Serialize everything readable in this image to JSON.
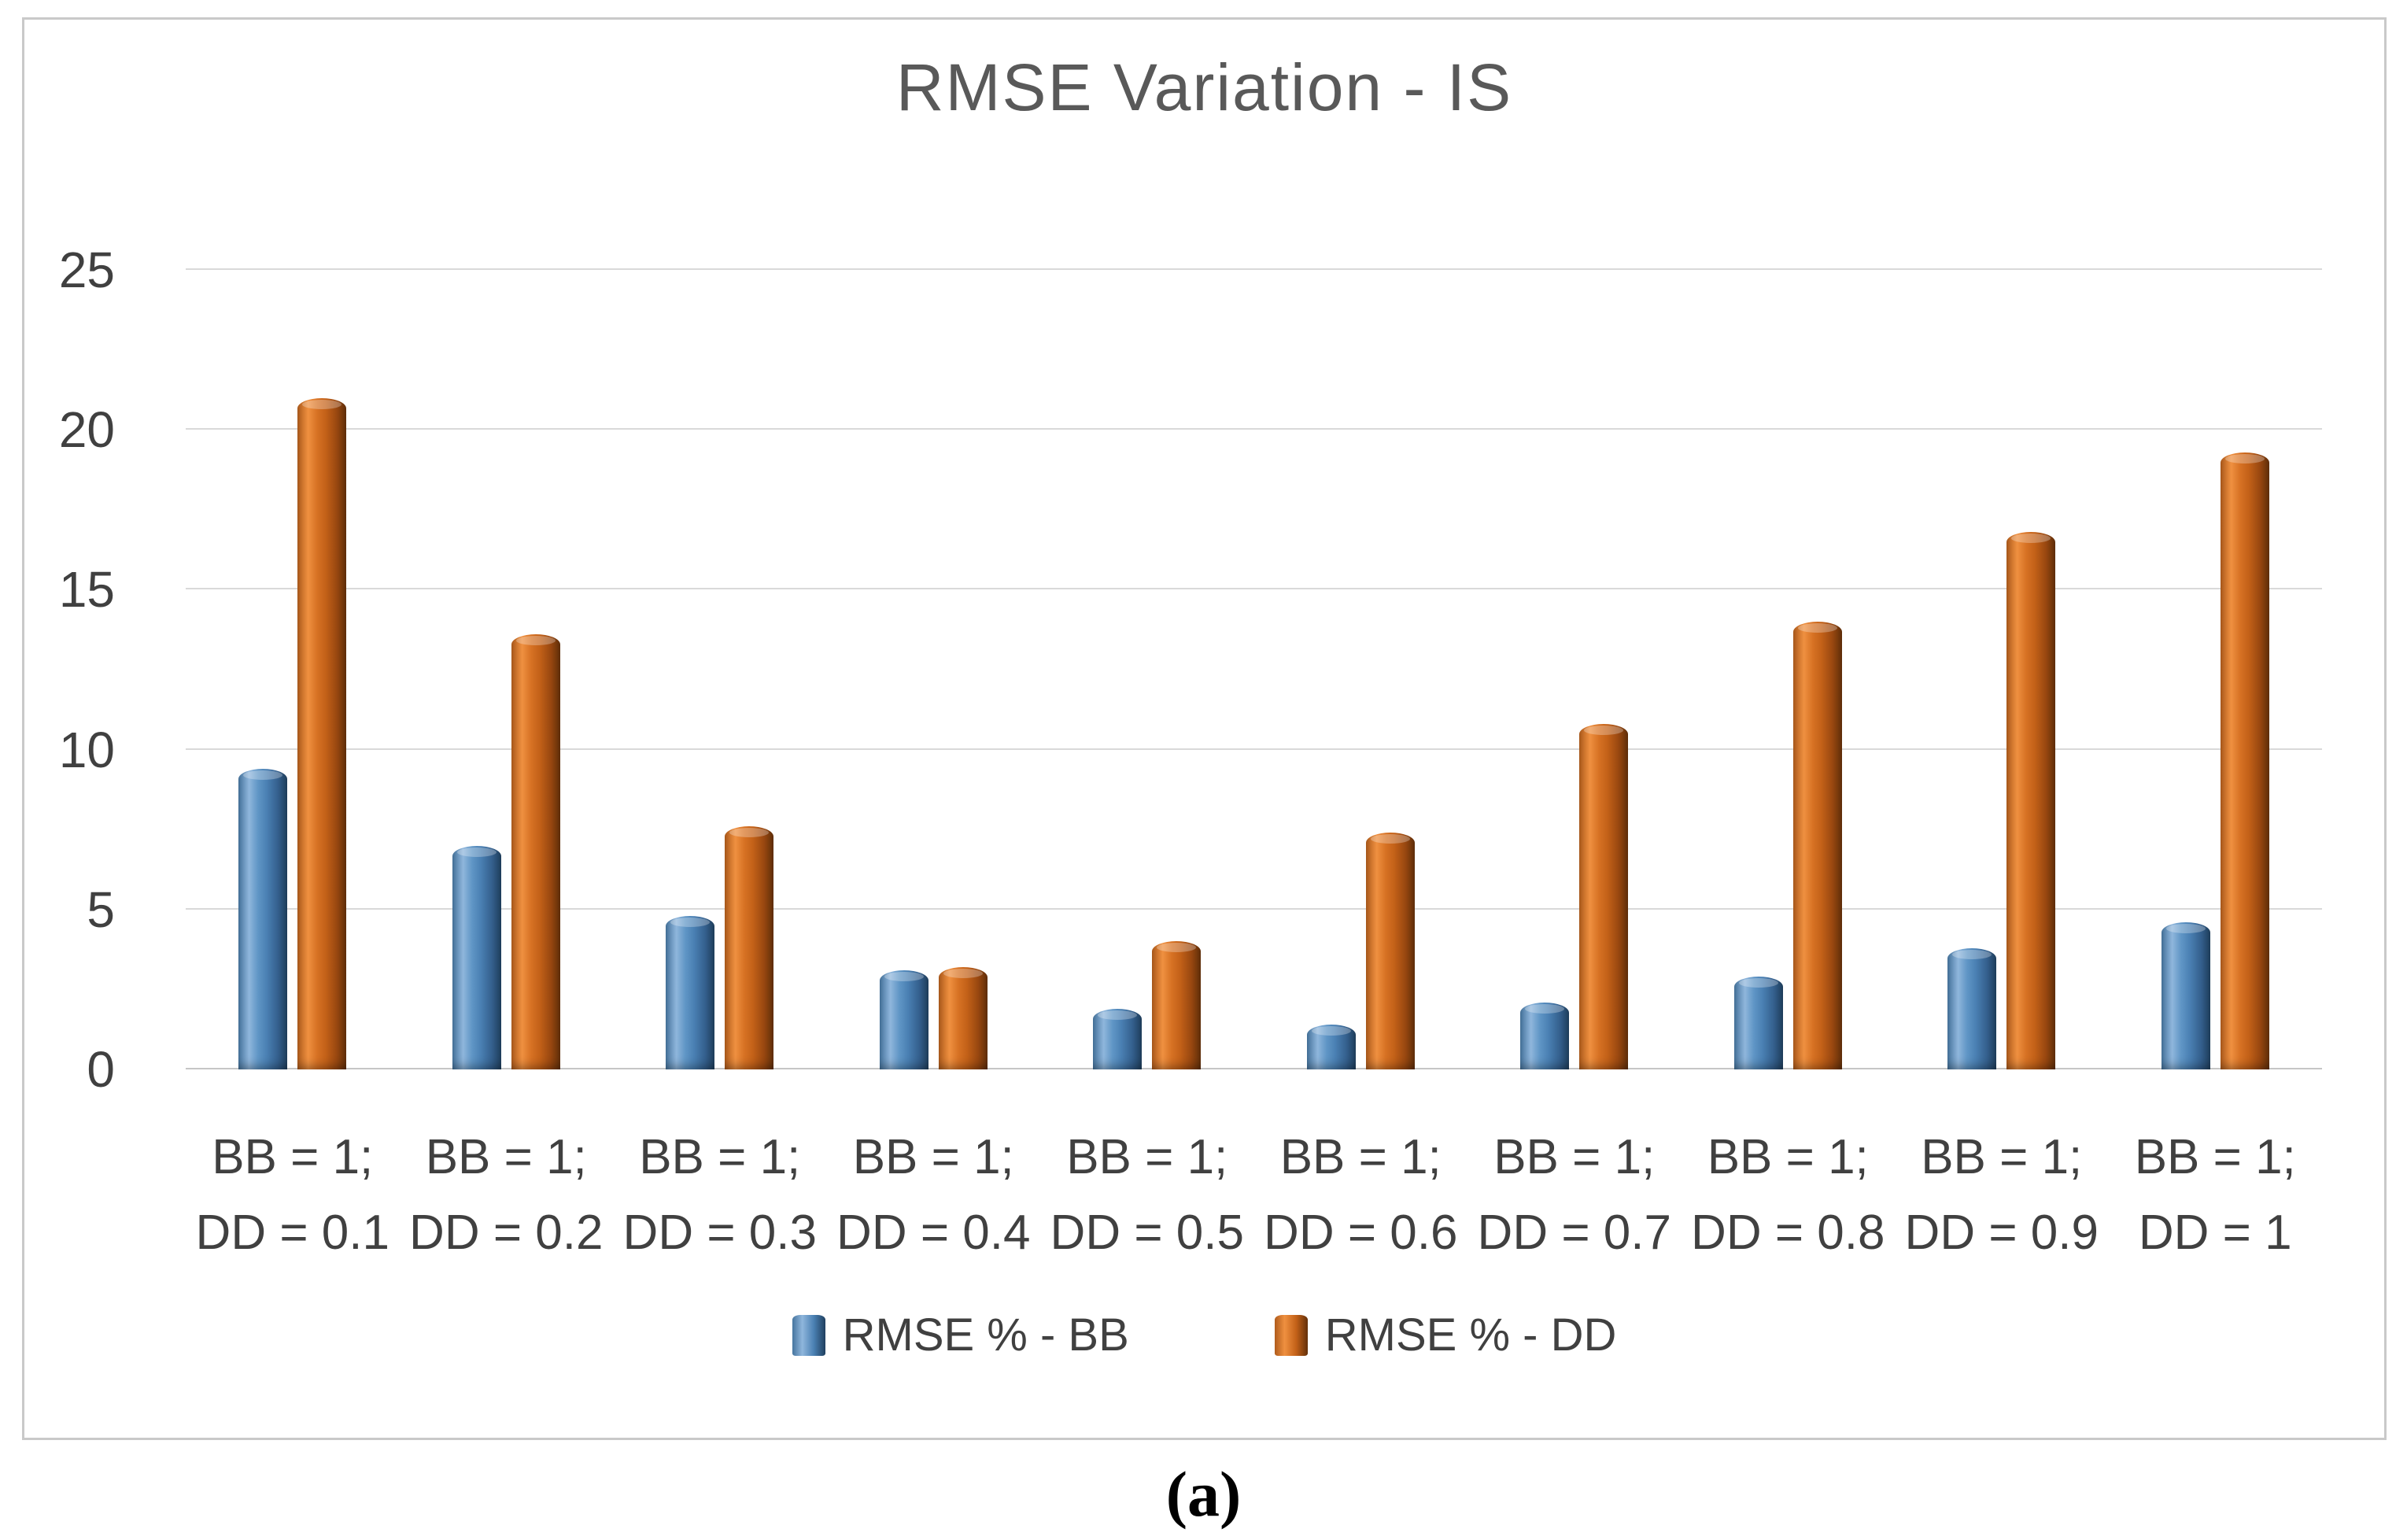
{
  "caption": "(a)",
  "chart_data": {
    "type": "bar",
    "title": "RMSE Variation - IS",
    "xlabel": "",
    "ylabel": "",
    "ylim": [
      0,
      25
    ],
    "yticks": [
      25,
      20,
      15,
      10,
      5,
      0
    ],
    "grid": true,
    "legend_position": "bottom",
    "categories": [
      {
        "top": "BB = 1;",
        "bottom": "DD = 0.1"
      },
      {
        "top": "BB = 1;",
        "bottom": "DD = 0.2"
      },
      {
        "top": "BB = 1;",
        "bottom": "DD = 0.3"
      },
      {
        "top": "BB = 1;",
        "bottom": "DD = 0.4"
      },
      {
        "top": "BB = 1;",
        "bottom": "DD = 0.5"
      },
      {
        "top": "BB = 1;",
        "bottom": "DD = 0.6"
      },
      {
        "top": "BB = 1;",
        "bottom": "DD = 0.7"
      },
      {
        "top": "BB = 1;",
        "bottom": "DD = 0.8"
      },
      {
        "top": "BB = 1;",
        "bottom": "DD = 0.9"
      },
      {
        "top": "BB = 1;",
        "bottom": "DD = 1"
      }
    ],
    "series": [
      {
        "key": "bb",
        "name": "RMSE % - BB",
        "color": "#4a80b3",
        "values": [
          9.4,
          7.0,
          4.8,
          3.1,
          1.9,
          1.4,
          2.1,
          2.9,
          3.8,
          4.6
        ]
      },
      {
        "key": "dd",
        "name": "RMSE % - DD",
        "color": "#c36118",
        "values": [
          21.0,
          13.6,
          7.6,
          3.2,
          4.0,
          7.4,
          10.8,
          14.0,
          16.8,
          19.3
        ]
      }
    ]
  }
}
